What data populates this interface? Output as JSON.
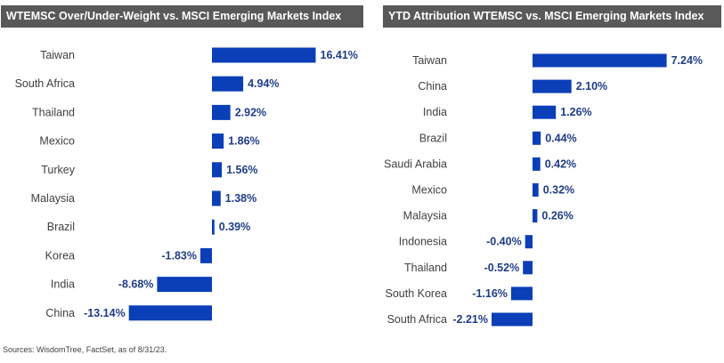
{
  "colors": {
    "bar": "#0b3fb8",
    "label": "#1f3c88",
    "header_bg": "#595959"
  },
  "chart_data": [
    {
      "type": "bar",
      "orientation": "horizontal",
      "title": "WTEMSC Over/Under-Weight vs. MSCI Emerging Markets Index",
      "categories": [
        "Taiwan",
        "South Africa",
        "Thailand",
        "Mexico",
        "Turkey",
        "Malaysia",
        "Brazil",
        "Korea",
        "India",
        "China"
      ],
      "values": [
        16.41,
        4.94,
        2.92,
        1.86,
        1.56,
        1.38,
        0.39,
        -1.83,
        -8.68,
        -13.14
      ],
      "value_labels": [
        "16.41%",
        "4.94%",
        "2.92%",
        "1.86%",
        "1.56%",
        "1.38%",
        "0.39%",
        "-1.83%",
        "-8.68%",
        "-13.14%"
      ],
      "grid": false
    },
    {
      "type": "bar",
      "orientation": "horizontal",
      "title": "YTD Attribution WTEMSC vs. MSCI Emerging Markets Index",
      "categories": [
        "Taiwan",
        "China",
        "India",
        "Brazil",
        "Saudi Arabia",
        "Mexico",
        "Malaysia",
        "Indonesia",
        "Thailand",
        "South Korea",
        "South Africa"
      ],
      "values": [
        7.24,
        2.1,
        1.26,
        0.44,
        0.42,
        0.32,
        0.26,
        -0.4,
        -0.52,
        -1.16,
        -2.21
      ],
      "value_labels": [
        "7.24%",
        "2.10%",
        "1.26%",
        "0.44%",
        "0.42%",
        "0.32%",
        "0.26%",
        "-0.40%",
        "-0.52%",
        "-1.16%",
        "-2.21%"
      ],
      "grid": false
    }
  ],
  "footer": {
    "source": "Sources: WisdomTree, FactSet, as of 8/31/23."
  }
}
